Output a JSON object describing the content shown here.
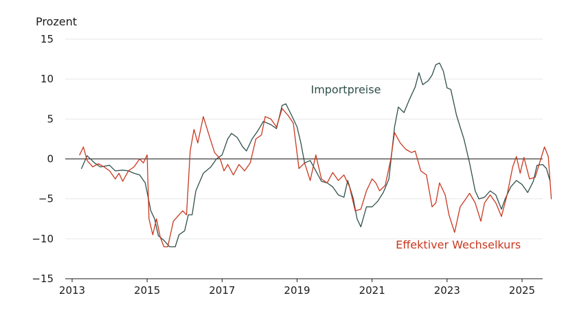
{
  "chart_data": {
    "type": "line",
    "ylabel": "Prozent",
    "ylim": [
      -15,
      15
    ],
    "xlim": [
      2013,
      2025.75
    ],
    "yticks": [
      -15,
      -10,
      -5,
      0,
      5,
      10,
      15
    ],
    "xticks": [
      2013,
      2015,
      2017,
      2019,
      2021,
      2023,
      2025
    ],
    "grid": true,
    "series": [
      {
        "name": "Importpreise",
        "color": "#2f4f4a",
        "points": [
          [
            2013.25,
            -1.2
          ],
          [
            2013.4,
            0.4
          ],
          [
            2013.6,
            -0.5
          ],
          [
            2013.75,
            -1.0
          ],
          [
            2014.0,
            -0.8
          ],
          [
            2014.15,
            -1.5
          ],
          [
            2014.35,
            -1.4
          ],
          [
            2014.5,
            -1.5
          ],
          [
            2014.65,
            -1.8
          ],
          [
            2014.8,
            -2.0
          ],
          [
            2014.95,
            -3.0
          ],
          [
            2015.1,
            -6.5
          ],
          [
            2015.2,
            -7.5
          ],
          [
            2015.3,
            -9.6
          ],
          [
            2015.45,
            -10.2
          ],
          [
            2015.6,
            -11.0
          ],
          [
            2015.75,
            -11.0
          ],
          [
            2015.85,
            -9.5
          ],
          [
            2016.0,
            -9.0
          ],
          [
            2016.1,
            -7.0
          ],
          [
            2016.2,
            -7.0
          ],
          [
            2016.3,
            -4.0
          ],
          [
            2016.5,
            -1.8
          ],
          [
            2016.7,
            -1.0
          ],
          [
            2016.85,
            0.0
          ],
          [
            2017.0,
            0.5
          ],
          [
            2017.15,
            2.5
          ],
          [
            2017.25,
            3.2
          ],
          [
            2017.4,
            2.7
          ],
          [
            2017.55,
            1.5
          ],
          [
            2017.65,
            1.0
          ],
          [
            2017.8,
            2.5
          ],
          [
            2017.95,
            3.5
          ],
          [
            2018.1,
            4.7
          ],
          [
            2018.3,
            4.3
          ],
          [
            2018.45,
            3.8
          ],
          [
            2018.6,
            6.7
          ],
          [
            2018.7,
            6.9
          ],
          [
            2018.85,
            5.5
          ],
          [
            2019.0,
            4.0
          ],
          [
            2019.1,
            2.0
          ],
          [
            2019.2,
            -0.5
          ],
          [
            2019.35,
            -0.2
          ],
          [
            2019.5,
            -1.5
          ],
          [
            2019.65,
            -2.8
          ],
          [
            2019.8,
            -3.0
          ],
          [
            2019.95,
            -3.5
          ],
          [
            2020.1,
            -4.5
          ],
          [
            2020.25,
            -4.8
          ],
          [
            2020.35,
            -2.7
          ],
          [
            2020.5,
            -5.0
          ],
          [
            2020.6,
            -7.5
          ],
          [
            2020.7,
            -8.5
          ],
          [
            2020.85,
            -6.0
          ],
          [
            2021.0,
            -6.0
          ],
          [
            2021.15,
            -5.3
          ],
          [
            2021.3,
            -4.2
          ],
          [
            2021.45,
            -2.5
          ],
          [
            2021.6,
            4.0
          ],
          [
            2021.7,
            6.5
          ],
          [
            2021.85,
            5.8
          ],
          [
            2022.0,
            7.5
          ],
          [
            2022.15,
            9.0
          ],
          [
            2022.25,
            10.8
          ],
          [
            2022.35,
            9.3
          ],
          [
            2022.5,
            9.8
          ],
          [
            2022.6,
            10.5
          ],
          [
            2022.7,
            11.8
          ],
          [
            2022.8,
            12.0
          ],
          [
            2022.9,
            11.0
          ],
          [
            2023.0,
            8.9
          ],
          [
            2023.1,
            8.7
          ],
          [
            2023.25,
            5.5
          ],
          [
            2023.35,
            4.0
          ],
          [
            2023.45,
            2.5
          ],
          [
            2023.6,
            -0.5
          ],
          [
            2023.75,
            -4.0
          ],
          [
            2023.85,
            -5.0
          ],
          [
            2024.0,
            -4.8
          ],
          [
            2024.15,
            -4.0
          ],
          [
            2024.3,
            -4.5
          ],
          [
            2024.45,
            -6.3
          ],
          [
            2024.55,
            -5.0
          ],
          [
            2024.7,
            -3.5
          ],
          [
            2024.85,
            -2.7
          ],
          [
            2025.0,
            -3.2
          ],
          [
            2025.15,
            -4.2
          ],
          [
            2025.3,
            -2.8
          ],
          [
            2025.4,
            -0.8
          ],
          [
            2025.55,
            -0.7
          ],
          [
            2025.65,
            -1.2
          ],
          [
            2025.75,
            -2.8
          ]
        ]
      },
      {
        "name": "Effektiver Wechselkurs",
        "color": "#c8381f",
        "points": [
          [
            2013.2,
            0.5
          ],
          [
            2013.3,
            1.5
          ],
          [
            2013.4,
            -0.2
          ],
          [
            2013.55,
            -1.0
          ],
          [
            2013.7,
            -0.6
          ],
          [
            2013.85,
            -1.0
          ],
          [
            2014.0,
            -1.5
          ],
          [
            2014.15,
            -2.5
          ],
          [
            2014.25,
            -1.8
          ],
          [
            2014.35,
            -2.8
          ],
          [
            2014.5,
            -1.5
          ],
          [
            2014.65,
            -1.0
          ],
          [
            2014.8,
            0.0
          ],
          [
            2014.9,
            -0.5
          ],
          [
            2015.0,
            0.5
          ],
          [
            2015.05,
            -7.5
          ],
          [
            2015.15,
            -9.5
          ],
          [
            2015.25,
            -7.5
          ],
          [
            2015.35,
            -9.8
          ],
          [
            2015.45,
            -11.0
          ],
          [
            2015.55,
            -11.0
          ],
          [
            2015.7,
            -7.8
          ],
          [
            2015.85,
            -7.0
          ],
          [
            2015.95,
            -6.5
          ],
          [
            2016.05,
            -7.0
          ],
          [
            2016.15,
            1.0
          ],
          [
            2016.25,
            3.7
          ],
          [
            2016.35,
            2.0
          ],
          [
            2016.5,
            5.3
          ],
          [
            2016.65,
            3.0
          ],
          [
            2016.8,
            0.8
          ],
          [
            2016.95,
            0.0
          ],
          [
            2017.05,
            -1.5
          ],
          [
            2017.15,
            -0.7
          ],
          [
            2017.3,
            -2.0
          ],
          [
            2017.45,
            -0.7
          ],
          [
            2017.6,
            -1.5
          ],
          [
            2017.75,
            -0.5
          ],
          [
            2017.9,
            2.5
          ],
          [
            2018.05,
            3.0
          ],
          [
            2018.15,
            5.3
          ],
          [
            2018.3,
            5.0
          ],
          [
            2018.45,
            4.0
          ],
          [
            2018.6,
            6.3
          ],
          [
            2018.75,
            5.5
          ],
          [
            2018.9,
            4.5
          ],
          [
            2019.05,
            -1.2
          ],
          [
            2019.2,
            -0.5
          ],
          [
            2019.35,
            -2.7
          ],
          [
            2019.5,
            0.5
          ],
          [
            2019.65,
            -2.5
          ],
          [
            2019.8,
            -3.0
          ],
          [
            2019.95,
            -1.7
          ],
          [
            2020.1,
            -2.7
          ],
          [
            2020.25,
            -2.0
          ],
          [
            2020.4,
            -3.5
          ],
          [
            2020.55,
            -6.5
          ],
          [
            2020.7,
            -6.3
          ],
          [
            2020.85,
            -4.0
          ],
          [
            2021.0,
            -2.5
          ],
          [
            2021.1,
            -3.0
          ],
          [
            2021.2,
            -4.0
          ],
          [
            2021.35,
            -3.3
          ],
          [
            2021.5,
            0.0
          ],
          [
            2021.6,
            3.3
          ],
          [
            2021.75,
            2.0
          ],
          [
            2021.9,
            1.2
          ],
          [
            2022.05,
            0.8
          ],
          [
            2022.15,
            1.0
          ],
          [
            2022.3,
            -1.5
          ],
          [
            2022.45,
            -2.0
          ],
          [
            2022.6,
            -6.0
          ],
          [
            2022.7,
            -5.5
          ],
          [
            2022.8,
            -3.0
          ],
          [
            2022.95,
            -4.5
          ],
          [
            2023.05,
            -7.0
          ],
          [
            2023.2,
            -9.2
          ],
          [
            2023.35,
            -6.0
          ],
          [
            2023.5,
            -5.0
          ],
          [
            2023.6,
            -4.3
          ],
          [
            2023.75,
            -5.5
          ],
          [
            2023.9,
            -7.8
          ],
          [
            2024.0,
            -5.5
          ],
          [
            2024.15,
            -4.5
          ],
          [
            2024.3,
            -5.5
          ],
          [
            2024.45,
            -7.2
          ],
          [
            2024.6,
            -4.5
          ],
          [
            2024.75,
            -1.0
          ],
          [
            2024.85,
            0.3
          ],
          [
            2024.95,
            -1.8
          ],
          [
            2025.05,
            0.2
          ],
          [
            2025.2,
            -2.5
          ],
          [
            2025.35,
            -2.3
          ],
          [
            2025.5,
            0.0
          ],
          [
            2025.6,
            1.5
          ],
          [
            2025.7,
            0.3
          ],
          [
            2025.78,
            -5.0
          ]
        ]
      }
    ],
    "annotations": [
      {
        "text": "Importpreise",
        "series": 0,
        "x": 2020.3,
        "y": 8.2
      },
      {
        "text": "Effektiver Wechselkurs",
        "series": 1,
        "x": 2023.3,
        "y": -11.2
      }
    ]
  }
}
